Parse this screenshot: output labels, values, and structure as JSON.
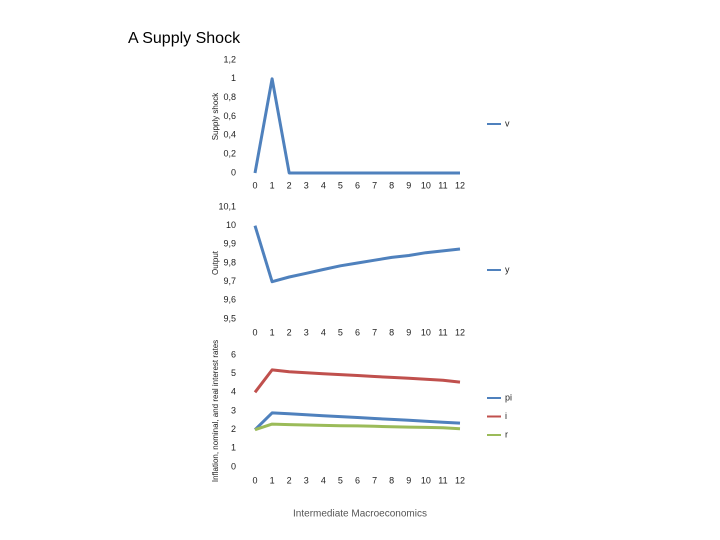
{
  "title": "A Supply Shock",
  "footer": "Intermediate Macroeconomics",
  "chart_data": [
    {
      "type": "line",
      "y_label": "Supply shock",
      "x": [
        0,
        1,
        2,
        3,
        4,
        5,
        6,
        7,
        8,
        9,
        10,
        11,
        12
      ],
      "xlim": [
        0,
        12
      ],
      "ylim": [
        0,
        1.2
      ],
      "yticks": [
        0,
        {
          "value": 0.2,
          "label": "0,2"
        },
        {
          "value": 0.4,
          "label": "0,4"
        },
        {
          "value": 0.6,
          "label": "0,6"
        },
        {
          "value": 0.8,
          "label": "0,8"
        },
        1,
        {
          "value": 1.2,
          "label": "1,2"
        }
      ],
      "series": [
        {
          "name": "v",
          "color": "#4f81bd",
          "values": [
            0,
            1,
            0,
            0,
            0,
            0,
            0,
            0,
            0,
            0,
            0,
            0,
            0
          ]
        }
      ]
    },
    {
      "type": "line",
      "y_label": "Output",
      "x": [
        0,
        1,
        2,
        3,
        4,
        5,
        6,
        7,
        8,
        9,
        10,
        11,
        12
      ],
      "xlim": [
        0,
        12
      ],
      "ylim": [
        9.5,
        10.1
      ],
      "yticks": [
        {
          "value": 9.5,
          "label": "9,5"
        },
        {
          "value": 9.6,
          "label": "9,6"
        },
        {
          "value": 9.7,
          "label": "9,7"
        },
        {
          "value": 9.8,
          "label": "9,8"
        },
        {
          "value": 9.9,
          "label": "9,9"
        },
        10,
        {
          "value": 10.1,
          "label": "10,1"
        }
      ],
      "series": [
        {
          "name": "y",
          "color": "#4f81bd",
          "values": [
            10,
            9.7,
            9.725,
            9.745,
            9.765,
            9.785,
            9.8,
            9.815,
            9.83,
            9.84,
            9.855,
            9.865,
            9.875
          ]
        }
      ]
    },
    {
      "type": "line",
      "y_label": "Inflation, nominal, and real interest rates",
      "x": [
        0,
        1,
        2,
        3,
        4,
        5,
        6,
        7,
        8,
        9,
        10,
        11,
        12
      ],
      "xlim": [
        0,
        12
      ],
      "ylim": [
        0,
        6
      ],
      "yticks": [
        0,
        1,
        2,
        3,
        4,
        5,
        6
      ],
      "series": [
        {
          "name": "pi",
          "color": "#4f81bd",
          "values": [
            2,
            2.9,
            2.85,
            2.8,
            2.75,
            2.7,
            2.65,
            2.6,
            2.55,
            2.5,
            2.45,
            2.4,
            2.35
          ]
        },
        {
          "name": "i",
          "color": "#c0504d",
          "values": [
            4,
            5.2,
            5.1,
            5.05,
            5,
            4.95,
            4.9,
            4.85,
            4.8,
            4.75,
            4.7,
            4.65,
            4.55
          ]
        },
        {
          "name": "r",
          "color": "#9bbb59",
          "values": [
            2,
            2.3,
            2.27,
            2.25,
            2.23,
            2.21,
            2.2,
            2.18,
            2.16,
            2.14,
            2.12,
            2.1,
            2.05
          ]
        }
      ]
    }
  ]
}
